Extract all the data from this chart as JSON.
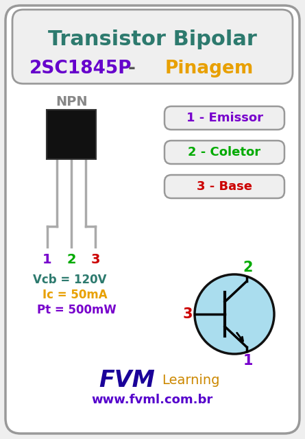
{
  "bg_color": "#efefef",
  "outer_border_color": "#999999",
  "title1": "Transistor Bipolar",
  "title1_color": "#2d7a6e",
  "title2_part1": "2SC1845P",
  "title2_part1_color": "#6600cc",
  "title2_dash": " - ",
  "title2_dash_color": "#555555",
  "title2_part2": "Pinagem",
  "title2_part2_color": "#e8a000",
  "npn_label": "NPN",
  "npn_color": "#888888",
  "pin_labels": [
    "1",
    "2",
    "3"
  ],
  "pin_colors": [
    "#7700cc",
    "#00aa00",
    "#cc0000"
  ],
  "pin_box_labels": [
    "1 - Emissor",
    "2 - Coletor",
    "3 - Base"
  ],
  "pin_box_colors": [
    "#7700cc",
    "#00aa00",
    "#cc0000"
  ],
  "pin_box_border": "#999999",
  "param1_label": "Vcb = 120V",
  "param1_color": "#2d7a6e",
  "param2_label": "Ic = 50mA",
  "param2_color": "#e8a000",
  "param3_label": "Pt = 500mW",
  "param3_color": "#7700cc",
  "fvm_color": "#1a0099",
  "learning_color": "#cc8800",
  "website": "www.fvml.com.br",
  "website_color": "#5500cc",
  "transistor_circle_color": "#aaddee",
  "transistor_circle_border": "#111111",
  "symbol_label2_color": "#00aa00",
  "symbol_label3_color": "#cc0000",
  "symbol_label1_color": "#7700cc"
}
